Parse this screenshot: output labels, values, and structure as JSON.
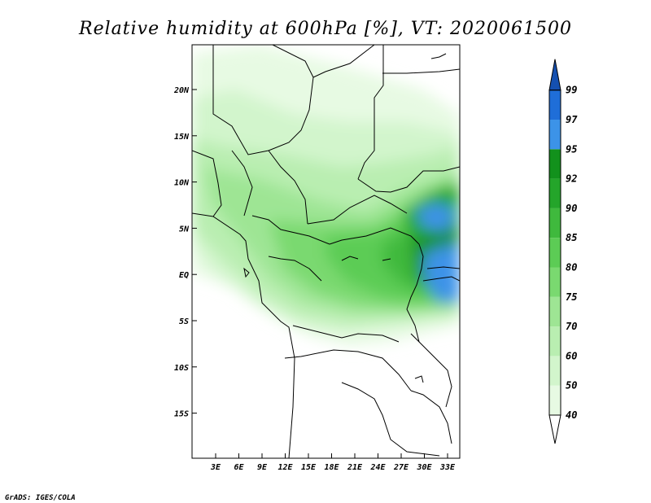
{
  "title": "Relative humidity at 600hPa [%], VT: 2020061500",
  "credit": "GrADS: IGES/COLA",
  "map": {
    "type": "filled-contour",
    "variable": "Relative humidity at 600hPa",
    "units": "%",
    "valid_time": "2020061500",
    "x_ticks": [
      "3E",
      "6E",
      "9E",
      "12E",
      "15E",
      "18E",
      "21E",
      "24E",
      "27E",
      "30E",
      "33E"
    ],
    "y_ticks": [
      "20N",
      "15N",
      "10N",
      "5N",
      "EQ",
      "5S",
      "10S",
      "15S"
    ]
  },
  "colorbar": {
    "levels": [
      {
        "label": "40",
        "color": "#ffffff"
      },
      {
        "label": "50",
        "color": "#e7fae3"
      },
      {
        "label": "60",
        "color": "#d2f5cc"
      },
      {
        "label": "70",
        "color": "#b9eeb1"
      },
      {
        "label": "75",
        "color": "#9ee594"
      },
      {
        "label": "80",
        "color": "#7ad970"
      },
      {
        "label": "85",
        "color": "#5ccc55"
      },
      {
        "label": "90",
        "color": "#3fb93d"
      },
      {
        "label": "92",
        "color": "#24a52a"
      },
      {
        "label": "95",
        "color": "#12911c"
      },
      {
        "label": "97",
        "color": "#3c93e8"
      },
      {
        "label": "99",
        "color": "#1f6ed8"
      }
    ],
    "top_color": "#1550b0"
  }
}
